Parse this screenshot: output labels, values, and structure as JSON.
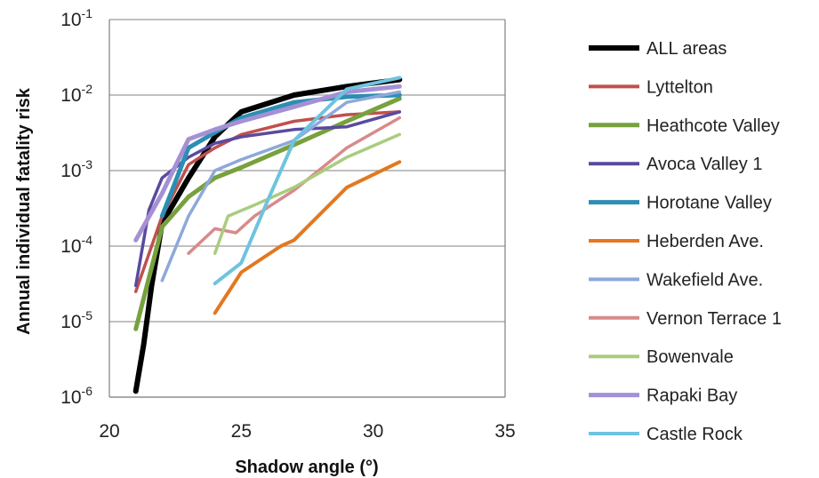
{
  "chart_data": {
    "type": "line",
    "xlabel": "Shadow angle (°)",
    "ylabel": "Annual individual fatality risk",
    "xlim": [
      20,
      35
    ],
    "ylim": [
      1e-06,
      0.1
    ],
    "yscale": "log",
    "grid": "horizontal",
    "legend_position": "right",
    "x_ticks": [
      20,
      25,
      30,
      35
    ],
    "y_ticks": [
      {
        "base": "10",
        "exp": "-1",
        "value": 0.1
      },
      {
        "base": "10",
        "exp": "-2",
        "value": 0.01
      },
      {
        "base": "10",
        "exp": "-3",
        "value": 0.001
      },
      {
        "base": "10",
        "exp": "-4",
        "value": 0.0001
      },
      {
        "base": "10",
        "exp": "-5",
        "value": 1e-05
      },
      {
        "base": "10",
        "exp": "-6",
        "value": 1e-06
      }
    ],
    "series": [
      {
        "name": "ALL areas",
        "color": "#000000",
        "width": 6,
        "points": [
          [
            21,
            1.2e-06
          ],
          [
            21.3,
            5e-06
          ],
          [
            21.6,
            3e-05
          ],
          [
            22,
            0.0002
          ],
          [
            23,
            0.0008
          ],
          [
            24,
            0.0028
          ],
          [
            25,
            0.006
          ],
          [
            27,
            0.01
          ],
          [
            29,
            0.013
          ],
          [
            31,
            0.016
          ]
        ]
      },
      {
        "name": "Lyttelton",
        "color": "#c0504d",
        "width": 3.5,
        "points": [
          [
            21,
            2.5e-05
          ],
          [
            22,
            0.00025
          ],
          [
            23,
            0.0012
          ],
          [
            24,
            0.002
          ],
          [
            25,
            0.003
          ],
          [
            27,
            0.0045
          ],
          [
            29,
            0.0055
          ],
          [
            31,
            0.006
          ]
        ]
      },
      {
        "name": "Heathcote Valley",
        "color": "#77a13e",
        "width": 5,
        "points": [
          [
            21,
            8e-06
          ],
          [
            22,
            0.00018
          ],
          [
            23,
            0.00045
          ],
          [
            24,
            0.0008
          ],
          [
            25,
            0.0011
          ],
          [
            27,
            0.0022
          ],
          [
            29,
            0.0045
          ],
          [
            31,
            0.009
          ]
        ]
      },
      {
        "name": "Avoca Valley 1",
        "color": "#5a4a9e",
        "width": 3.5,
        "points": [
          [
            21,
            3e-05
          ],
          [
            21.5,
            0.0003
          ],
          [
            22,
            0.0008
          ],
          [
            23,
            0.0015
          ],
          [
            24,
            0.0023
          ],
          [
            25,
            0.0028
          ],
          [
            27,
            0.0035
          ],
          [
            29,
            0.0038
          ],
          [
            31,
            0.006
          ]
        ]
      },
      {
        "name": "Horotane Valley",
        "color": "#2b8fb3",
        "width": 5,
        "points": [
          [
            22,
            0.00025
          ],
          [
            23,
            0.002
          ],
          [
            24,
            0.0032
          ],
          [
            25,
            0.005
          ],
          [
            27,
            0.008
          ],
          [
            29,
            0.0095
          ],
          [
            31,
            0.01
          ]
        ]
      },
      {
        "name": "Heberden Ave.",
        "color": "#e3781f",
        "width": 4,
        "points": [
          [
            24,
            1.3e-05
          ],
          [
            25,
            4.5e-05
          ],
          [
            26.5,
            0.0001
          ],
          [
            27,
            0.00012
          ],
          [
            29,
            0.0006
          ],
          [
            31,
            0.0013
          ]
        ]
      },
      {
        "name": "Wakefield Ave.",
        "color": "#8ea8da",
        "width": 3.5,
        "points": [
          [
            22,
            3.5e-05
          ],
          [
            23,
            0.00025
          ],
          [
            24,
            0.001
          ],
          [
            25,
            0.0014
          ],
          [
            27,
            0.0025
          ],
          [
            29,
            0.008
          ],
          [
            31,
            0.011
          ]
        ]
      },
      {
        "name": "Vernon Terrace 1",
        "color": "#d88a8a",
        "width": 3.5,
        "points": [
          [
            23,
            8e-05
          ],
          [
            24,
            0.00017
          ],
          [
            24.8,
            0.00015
          ],
          [
            25.5,
            0.00025
          ],
          [
            27,
            0.00055
          ],
          [
            29,
            0.002
          ],
          [
            31,
            0.005
          ]
        ]
      },
      {
        "name": "Bowenvale",
        "color": "#a9cd7e",
        "width": 3.5,
        "points": [
          [
            24,
            8e-05
          ],
          [
            24.5,
            0.00025
          ],
          [
            25.5,
            0.00035
          ],
          [
            27,
            0.0006
          ],
          [
            29,
            0.0015
          ],
          [
            31,
            0.003
          ]
        ]
      },
      {
        "name": "Rapaki Bay",
        "color": "#a690d4",
        "width": 5,
        "points": [
          [
            21,
            0.00012
          ],
          [
            22,
            0.0005
          ],
          [
            23,
            0.0026
          ],
          [
            24,
            0.0035
          ],
          [
            25,
            0.0045
          ],
          [
            27,
            0.007
          ],
          [
            29,
            0.011
          ],
          [
            31,
            0.013
          ]
        ]
      },
      {
        "name": "Castle Rock",
        "color": "#6ec4df",
        "width": 4,
        "points": [
          [
            24,
            3.2e-05
          ],
          [
            25,
            6e-05
          ],
          [
            26,
            0.0004
          ],
          [
            27,
            0.0025
          ],
          [
            29,
            0.012
          ],
          [
            31,
            0.017
          ]
        ]
      }
    ]
  }
}
